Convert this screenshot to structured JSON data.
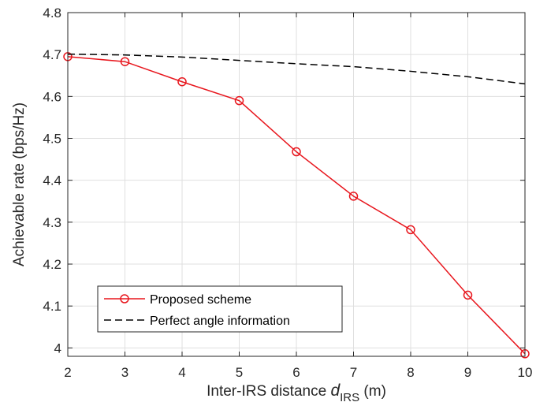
{
  "chart_data": {
    "type": "line",
    "xlabel": {
      "main": "Inter-IRS distance ",
      "var": "d",
      "sub": "IRS",
      "unit": " (m)"
    },
    "ylabel": "Achievable rate (bps/Hz)",
    "xlim": [
      2,
      10
    ],
    "ylim": [
      3.98,
      4.8
    ],
    "xticks": [
      "2",
      "3",
      "4",
      "5",
      "6",
      "7",
      "8",
      "9",
      "10"
    ],
    "yticks": [
      "4",
      "4.1",
      "4.2",
      "4.3",
      "4.4",
      "4.5",
      "4.6",
      "4.7",
      "4.8"
    ],
    "grid": true,
    "legend_position": "bottom-left",
    "x": [
      2,
      3,
      4,
      5,
      6,
      7,
      8,
      9,
      10
    ],
    "series": [
      {
        "name": "Proposed scheme",
        "color": "#e8161d",
        "style": "solid",
        "marker": "circle",
        "values": [
          4.695,
          4.683,
          4.635,
          4.59,
          4.468,
          4.362,
          4.282,
          4.126,
          3.986
        ]
      },
      {
        "name": "Perfect angle information",
        "color": "#000000",
        "style": "dashed",
        "marker": "none",
        "values": [
          4.701,
          4.699,
          4.694,
          4.686,
          4.678,
          4.671,
          4.66,
          4.647,
          4.63
        ]
      }
    ]
  }
}
